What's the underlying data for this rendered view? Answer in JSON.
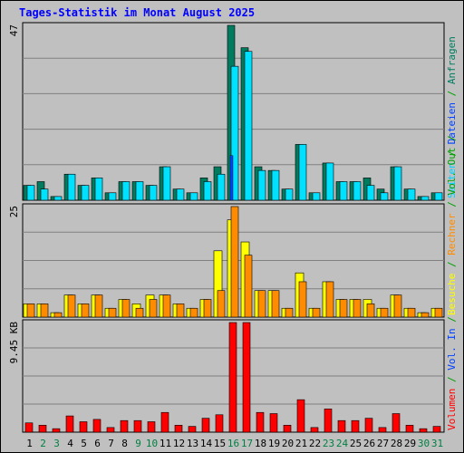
{
  "chart_data": {
    "type": "bar",
    "title": "Tages-Statistik im Monat August 2025",
    "categories": [
      "1",
      "2",
      "3",
      "4",
      "5",
      "6",
      "7",
      "8",
      "9",
      "10",
      "11",
      "12",
      "13",
      "14",
      "15",
      "16",
      "17",
      "18",
      "19",
      "20",
      "21",
      "22",
      "23",
      "24",
      "25",
      "26",
      "27",
      "28",
      "29",
      "30",
      "31"
    ],
    "weekend_days": [
      "2",
      "3",
      "9",
      "10",
      "16",
      "17",
      "23",
      "24",
      "30",
      "31"
    ],
    "colors": {
      "grid_bg": "#c0c0c0",
      "weekday_label": "#000000",
      "weekend_label": "#008040",
      "anfragen": "#007b5e",
      "dateien": "#00e0ff",
      "seiten": "#0040ff",
      "besuche": "#ffff00",
      "rechner": "#ff8c00",
      "volumen": "#ff0000"
    },
    "panels": [
      {
        "id": "top",
        "ymax": 47,
        "ymax_label": "47",
        "series": [
          {
            "name": "Anfragen",
            "values": [
              4,
              5,
              1,
              7,
              4,
              6,
              2,
              5,
              5,
              4,
              9,
              3,
              2,
              6,
              9,
              47,
              41,
              9,
              8,
              3,
              15,
              2,
              10,
              5,
              5,
              6,
              3,
              9,
              3,
              1,
              2
            ]
          },
          {
            "name": "Dateien",
            "values": [
              4,
              3,
              1,
              7,
              4,
              6,
              2,
              5,
              5,
              4,
              9,
              3,
              2,
              5,
              7,
              36,
              40,
              8,
              8,
              3,
              15,
              2,
              10,
              5,
              5,
              4,
              2,
              9,
              3,
              1,
              2
            ]
          },
          {
            "name": "Seiten",
            "values": [
              0,
              0,
              0,
              0,
              0,
              0,
              0,
              0,
              0,
              0,
              0,
              0,
              0,
              0,
              0,
              12,
              0,
              0,
              0,
              0,
              0,
              0,
              0,
              0,
              0,
              0,
              0,
              0,
              0,
              0,
              0
            ]
          }
        ],
        "right_label_parts": [
          {
            "text": "Seiten",
            "color": "#00d0ff"
          },
          {
            "text": " / ",
            "color": "#00a000"
          },
          {
            "text": "Dateien",
            "color": "#0040ff"
          },
          {
            "text": " / ",
            "color": "#00a000"
          },
          {
            "text": "Anfragen",
            "color": "#007b5e"
          }
        ]
      },
      {
        "id": "middle",
        "ymax": 25,
        "ymax_label": "25",
        "series": [
          {
            "name": "Besuche",
            "values": [
              3,
              3,
              1,
              5,
              3,
              5,
              2,
              4,
              3,
              5,
              5,
              3,
              2,
              4,
              15,
              22,
              17,
              6,
              6,
              2,
              10,
              2,
              8,
              4,
              4,
              4,
              2,
              5,
              2,
              1,
              2
            ]
          },
          {
            "name": "Rechner",
            "values": [
              3,
              3,
              1,
              5,
              3,
              5,
              2,
              4,
              2,
              4,
              5,
              3,
              2,
              4,
              6,
              25,
              14,
              6,
              6,
              2,
              8,
              2,
              8,
              4,
              4,
              3,
              2,
              5,
              2,
              1,
              2
            ]
          }
        ],
        "right_label_parts": [
          {
            "text": "Besuche",
            "color": "#ffff00"
          },
          {
            "text": " / ",
            "color": "#00a000"
          },
          {
            "text": "Rechner",
            "color": "#ff8c00"
          },
          {
            "text": " / ",
            "color": "#00a000"
          },
          {
            "text": "Vol. Out",
            "color": "#00a000"
          },
          {
            "text": " / ",
            "color": "#00a000"
          }
        ]
      },
      {
        "id": "bottom",
        "ymax": 9.45,
        "ymax_label": "9.45 KB",
        "series": [
          {
            "name": "Volumen",
            "values": [
              0.8,
              0.6,
              0.3,
              1.4,
              0.9,
              1.1,
              0.4,
              1.0,
              1.0,
              0.9,
              1.7,
              0.6,
              0.5,
              1.2,
              1.5,
              9.45,
              9.45,
              1.7,
              1.6,
              0.6,
              2.8,
              0.4,
              2.0,
              1.0,
              1.0,
              1.2,
              0.4,
              1.6,
              0.6,
              0.3,
              0.5
            ]
          }
        ],
        "right_label_parts": [
          {
            "text": "Volumen",
            "color": "#ff0000"
          },
          {
            "text": " / ",
            "color": "#00a000"
          },
          {
            "text": "Vol. In",
            "color": "#0040ff"
          },
          {
            "text": " / ",
            "color": "#00a000"
          }
        ]
      }
    ]
  }
}
